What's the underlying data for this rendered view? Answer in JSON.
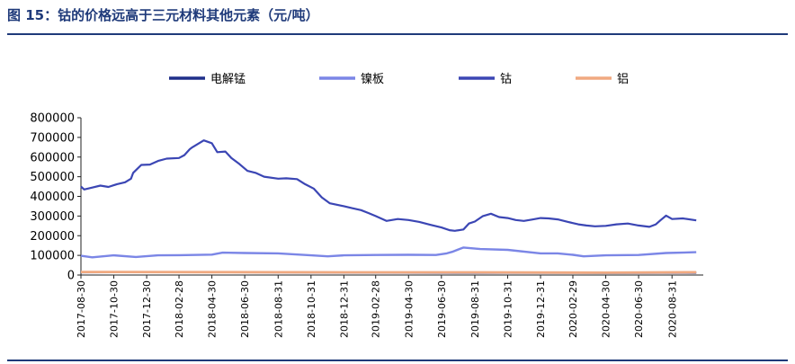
{
  "figure": {
    "title": "图 15：钴的价格远高于三元材料其他元素（元/吨）"
  },
  "chart_data": {
    "type": "line",
    "title": "",
    "xlabel": "",
    "ylabel": "",
    "ylim": [
      0,
      800000
    ],
    "yticks": [
      "0",
      "100000",
      "200000",
      "300000",
      "400000",
      "500000",
      "600000",
      "700000",
      "800000"
    ],
    "xticks": [
      "2017-08-30",
      "2017-10-30",
      "2017-12-30",
      "2018-02-28",
      "2018-04-30",
      "2018-06-30",
      "2018-08-31",
      "2018-10-31",
      "2018-12-31",
      "2019-02-28",
      "2019-04-30",
      "2019-06-30",
      "2019-08-31",
      "2019-10-31",
      "2019-12-31",
      "2020-02-29",
      "2020-04-30",
      "2020-06-30",
      "2020-08-31"
    ],
    "legend_position": "top",
    "grid": false,
    "series": [
      {
        "name": "电解锰",
        "color": "#1f2f8a",
        "x": [
          "2017-08-30",
          "2018-04-30",
          "2018-12-31",
          "2019-08-31",
          "2020-04-30",
          "2020-10-15"
        ],
        "y": [
          14000,
          15000,
          13000,
          12000,
          11500,
          12000
        ]
      },
      {
        "name": "镍板",
        "color": "#7b86e6",
        "x": [
          "2017-08-30",
          "2017-09-20",
          "2017-10-30",
          "2017-12-10",
          "2018-01-20",
          "2018-03-01",
          "2018-04-30",
          "2018-05-20",
          "2018-06-30",
          "2018-08-31",
          "2018-10-31",
          "2018-12-01",
          "2018-12-31",
          "2019-02-28",
          "2019-04-30",
          "2019-06-20",
          "2019-07-10",
          "2019-07-20",
          "2019-08-10",
          "2019-09-10",
          "2019-10-31",
          "2019-12-31",
          "2020-02-01",
          "2020-02-29",
          "2020-03-20",
          "2020-04-30",
          "2020-06-30",
          "2020-08-20",
          "2020-10-15"
        ],
        "y": [
          98000,
          90000,
          100000,
          92000,
          100000,
          101000,
          104000,
          114000,
          112000,
          110000,
          100000,
          95000,
          100000,
          102000,
          103000,
          102000,
          110000,
          118000,
          140000,
          132000,
          128000,
          110000,
          110000,
          103000,
          95000,
          100000,
          102000,
          112000,
          116000
        ]
      },
      {
        "name": "钴",
        "color": "#3b46b4",
        "x": [
          "2017-08-30",
          "2017-09-05",
          "2017-09-20",
          "2017-10-05",
          "2017-10-20",
          "2017-11-05",
          "2017-11-20",
          "2017-12-01",
          "2017-12-05",
          "2017-12-20",
          "2018-01-05",
          "2018-01-20",
          "2018-02-05",
          "2018-02-28",
          "2018-03-10",
          "2018-03-20",
          "2018-03-25",
          "2018-04-15",
          "2018-04-25",
          "2018-04-30",
          "2018-05-10",
          "2018-05-25",
          "2018-06-05",
          "2018-06-20",
          "2018-07-05",
          "2018-07-20",
          "2018-08-05",
          "2018-08-31",
          "2018-09-15",
          "2018-10-05",
          "2018-10-20",
          "2018-11-05",
          "2018-11-20",
          "2018-12-05",
          "2018-12-31",
          "2019-01-15",
          "2019-02-01",
          "2019-02-15",
          "2019-02-28",
          "2019-03-20",
          "2019-04-10",
          "2019-04-30",
          "2019-05-20",
          "2019-06-10",
          "2019-06-30",
          "2019-07-15",
          "2019-07-25",
          "2019-08-10",
          "2019-08-20",
          "2019-08-31",
          "2019-09-15",
          "2019-09-30",
          "2019-10-15",
          "2019-10-31",
          "2019-11-15",
          "2019-11-30",
          "2019-12-15",
          "2019-12-31",
          "2020-01-15",
          "2020-02-01",
          "2020-02-20",
          "2020-03-10",
          "2020-03-25",
          "2020-04-10",
          "2020-04-30",
          "2020-05-20",
          "2020-06-10",
          "2020-06-30",
          "2020-07-20",
          "2020-08-01",
          "2020-08-10",
          "2020-08-20",
          "2020-08-31",
          "2020-09-20",
          "2020-10-15"
        ],
        "y": [
          450000,
          435000,
          445000,
          455000,
          448000,
          462000,
          472000,
          490000,
          520000,
          560000,
          562000,
          580000,
          592000,
          595000,
          610000,
          640000,
          650000,
          685000,
          675000,
          670000,
          625000,
          628000,
          595000,
          565000,
          530000,
          520000,
          500000,
          490000,
          492000,
          488000,
          462000,
          440000,
          395000,
          365000,
          350000,
          340000,
          330000,
          315000,
          300000,
          275000,
          285000,
          280000,
          270000,
          255000,
          242000,
          228000,
          225000,
          232000,
          262000,
          272000,
          300000,
          312000,
          295000,
          290000,
          280000,
          275000,
          282000,
          290000,
          288000,
          283000,
          270000,
          258000,
          252000,
          248000,
          250000,
          258000,
          262000,
          252000,
          245000,
          258000,
          280000,
          302000,
          285000,
          288000,
          278000
        ]
      },
      {
        "name": "铝",
        "color": "#f0a980",
        "x": [
          "2017-08-30",
          "2018-04-30",
          "2018-12-31",
          "2019-08-31",
          "2020-04-30",
          "2020-10-15"
        ],
        "y": [
          15500,
          14500,
          13800,
          13800,
          12000,
          14000
        ]
      }
    ]
  }
}
